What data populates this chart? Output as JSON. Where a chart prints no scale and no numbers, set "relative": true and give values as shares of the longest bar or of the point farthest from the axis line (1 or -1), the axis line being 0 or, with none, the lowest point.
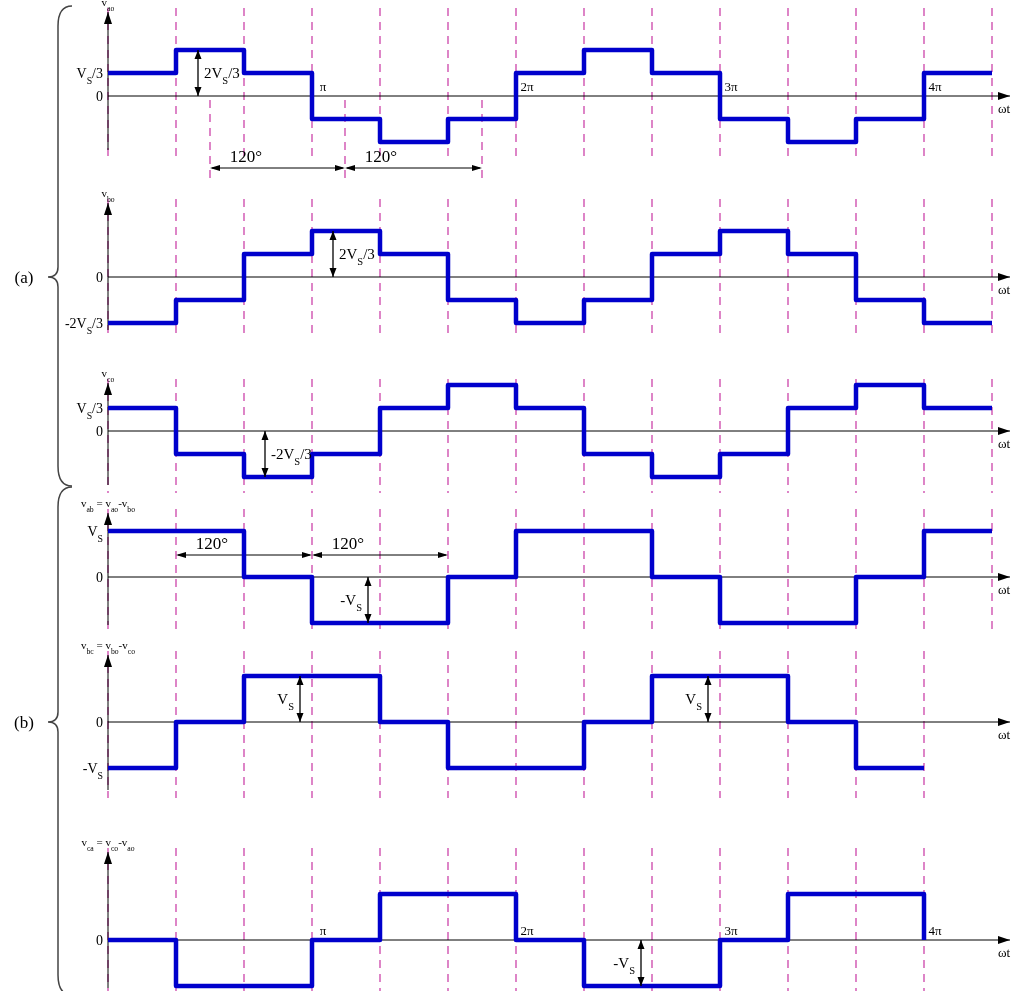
{
  "chart_data": [
    {
      "type": "step",
      "relative": true,
      "grid": "x",
      "tick_labels": "x",
      "ylabel": "v$_{ao}$",
      "xlabel": "ωt",
      "color": "#0000cc",
      "categories": [
        null,
        null,
        null,
        "π",
        null,
        null,
        "2π",
        null,
        null,
        "3π",
        null,
        null,
        "4π",
        null
      ],
      "values": [
        0.5,
        1,
        0.5,
        -0.5,
        -1,
        -0.5,
        0.5,
        1,
        0.5,
        -0.5,
        -1,
        -0.5,
        0.5,
        0.5
      ],
      "annotations": [
        "120°",
        "120°",
        "V$_{S}$/3",
        "0",
        {
          "text": "2V$_{S}$/3",
          "y": 1
        }
      ]
    },
    {
      "type": "step",
      "relative": true,
      "grid": "x",
      "tick_labels": false,
      "ylabel": "v$_{bo}$",
      "xlabel": "ωt",
      "color": "#0000cc",
      "categories": [
        null,
        null,
        null,
        null,
        null,
        null,
        null,
        null,
        null,
        null,
        null,
        null,
        null,
        null
      ],
      "values": [
        -1,
        -0.5,
        0.5,
        1,
        0.5,
        -0.5,
        -1,
        -0.5,
        0.5,
        1,
        0.5,
        -0.5,
        -1,
        -1
      ],
      "annotations": [
        "(a)",
        "0",
        "-2V$_{S}$/3",
        {
          "text": "2V$_{S}$/3",
          "y": 1
        }
      ]
    },
    {
      "type": "step",
      "relative": true,
      "grid": "x",
      "tick_labels": false,
      "ylabel": "v$_{co}$",
      "xlabel": "ωt",
      "color": "#0000cc",
      "categories": [
        null,
        null,
        null,
        null,
        null,
        null,
        null,
        null,
        null,
        null,
        null,
        null,
        null,
        null
      ],
      "values": [
        0.5,
        -0.5,
        -1,
        -0.5,
        0.5,
        1,
        0.5,
        -0.5,
        -1,
        -0.5,
        0.5,
        1,
        0.5,
        0.5
      ],
      "annotations": [
        "V$_{S}$/3",
        "0",
        {
          "text": "-2V$_{S}$/3",
          "y": -1
        }
      ]
    },
    {
      "type": "step",
      "relative": true,
      "grid": "x",
      "tick_labels": false,
      "ylabel": "v$_{ab}$ = v$_{ao}$-v$_{bo}$",
      "xlabel": "ωt",
      "color": "#0000cc",
      "categories": [
        null,
        null,
        null,
        null,
        null,
        null,
        null,
        null,
        null,
        null,
        null,
        null,
        null,
        null
      ],
      "values": [
        1,
        1,
        0,
        -1,
        -1,
        0,
        1,
        1,
        0,
        -1,
        -1,
        0,
        1,
        1
      ],
      "annotations": [
        "120°",
        "120°",
        "V$_{S}$",
        "0",
        {
          "text": "-V$_{S}$",
          "y": -1
        }
      ]
    },
    {
      "type": "step",
      "relative": true,
      "grid": "x",
      "tick_labels": false,
      "ylabel": "v$_{bc}$ = v$_{bo}$-v$_{co}$",
      "xlabel": "ωt",
      "color": "#0000cc",
      "categories": [
        null,
        null,
        null,
        null,
        null,
        null,
        null,
        null,
        null,
        null,
        null,
        null,
        null
      ],
      "values": [
        -1,
        0,
        1,
        1,
        0,
        -1,
        -1,
        0,
        1,
        1,
        0,
        -1,
        -1
      ],
      "annotations": [
        "(b)",
        "0",
        "-V$_{S}$",
        {
          "text": "V$_{S}$",
          "y": 1
        },
        {
          "text": "V$_{S}$",
          "y": 1
        }
      ]
    },
    {
      "type": "step",
      "relative": true,
      "grid": "x",
      "tick_labels": "x",
      "ylabel": "v$_{ca}$ = v$_{co}$-v$_{ao}$",
      "xlabel": "ωt",
      "color": "#0000cc",
      "categories": [
        null,
        null,
        null,
        "π",
        null,
        null,
        "2π",
        null,
        null,
        "3π",
        null,
        null,
        "4π"
      ],
      "values": [
        0,
        -1,
        -1,
        0,
        1,
        1,
        0,
        -1,
        -1,
        0,
        1,
        1,
        0
      ],
      "annotations": [
        "0",
        {
          "text": "-V$_{S}$",
          "y": -1
        }
      ]
    }
  ]
}
